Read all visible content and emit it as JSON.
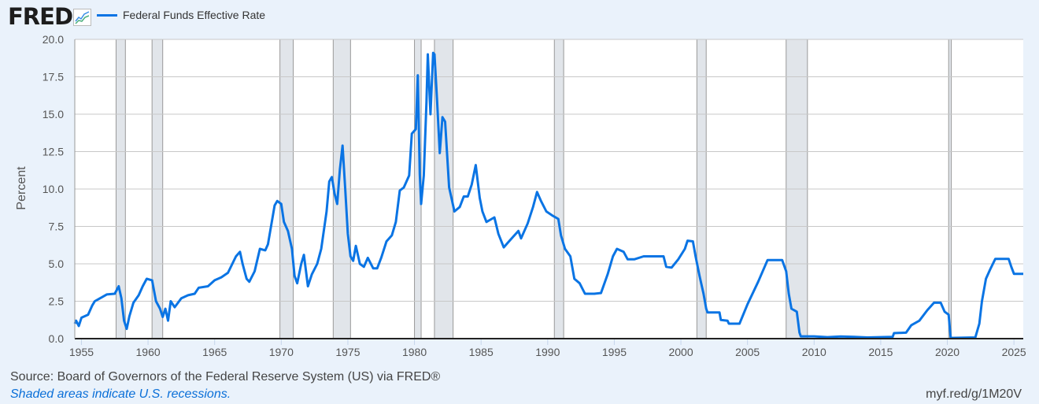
{
  "header": {
    "logo_text": "FRED",
    "logo_icon": "chart-line-icon"
  },
  "chart_data": {
    "type": "line",
    "title": "",
    "xlabel": "",
    "ylabel": "Percent",
    "xlim": [
      1954.5,
      2025.7
    ],
    "ylim": [
      0,
      20
    ],
    "grid": "horizontal",
    "legend_placement": "top-left",
    "x_ticks": [
      1955,
      1960,
      1965,
      1970,
      1975,
      1980,
      1985,
      1990,
      1995,
      2000,
      2005,
      2010,
      2015,
      2020,
      2025
    ],
    "y_ticks": [
      "0.0",
      "2.5",
      "5.0",
      "7.5",
      "10.0",
      "12.5",
      "15.0",
      "17.5",
      "20.0"
    ],
    "recessions": [
      [
        1957.6,
        1958.3
      ],
      [
        1960.3,
        1961.1
      ],
      [
        1969.9,
        1970.9
      ],
      [
        1973.9,
        1975.2
      ],
      [
        1980.0,
        1980.5
      ],
      [
        1981.5,
        1982.9
      ],
      [
        1990.5,
        1991.2
      ],
      [
        2001.2,
        2001.9
      ],
      [
        2007.9,
        2009.5
      ],
      [
        2020.1,
        2020.3
      ]
    ],
    "series": [
      {
        "name": "Federal Funds Effective Rate",
        "color": "#0a74e4",
        "points": [
          [
            1954.5,
            1.0
          ],
          [
            1954.6,
            1.2
          ],
          [
            1954.8,
            0.85
          ],
          [
            1955.0,
            1.4
          ],
          [
            1955.5,
            1.6
          ],
          [
            1955.8,
            2.2
          ],
          [
            1956.0,
            2.5
          ],
          [
            1956.5,
            2.75
          ],
          [
            1956.9,
            2.95
          ],
          [
            1957.5,
            3.0
          ],
          [
            1957.8,
            3.5
          ],
          [
            1958.0,
            2.7
          ],
          [
            1958.2,
            1.2
          ],
          [
            1958.4,
            0.65
          ],
          [
            1958.6,
            1.5
          ],
          [
            1958.9,
            2.4
          ],
          [
            1959.3,
            2.9
          ],
          [
            1959.6,
            3.5
          ],
          [
            1959.9,
            4.0
          ],
          [
            1960.3,
            3.9
          ],
          [
            1960.6,
            2.5
          ],
          [
            1960.9,
            2.0
          ],
          [
            1961.1,
            1.45
          ],
          [
            1961.3,
            2.0
          ],
          [
            1961.5,
            1.2
          ],
          [
            1961.7,
            2.5
          ],
          [
            1962.0,
            2.1
          ],
          [
            1962.5,
            2.7
          ],
          [
            1963.0,
            2.9
          ],
          [
            1963.5,
            3.0
          ],
          [
            1963.8,
            3.4
          ],
          [
            1964.5,
            3.5
          ],
          [
            1965.0,
            3.9
          ],
          [
            1965.5,
            4.1
          ],
          [
            1966.0,
            4.4
          ],
          [
            1966.6,
            5.5
          ],
          [
            1966.9,
            5.8
          ],
          [
            1967.1,
            5.0
          ],
          [
            1967.4,
            4.0
          ],
          [
            1967.6,
            3.8
          ],
          [
            1968.0,
            4.5
          ],
          [
            1968.4,
            6.0
          ],
          [
            1968.8,
            5.9
          ],
          [
            1969.0,
            6.3
          ],
          [
            1969.5,
            8.9
          ],
          [
            1969.7,
            9.2
          ],
          [
            1970.0,
            9.0
          ],
          [
            1970.2,
            7.8
          ],
          [
            1970.5,
            7.2
          ],
          [
            1970.8,
            6.0
          ],
          [
            1971.0,
            4.2
          ],
          [
            1971.2,
            3.7
          ],
          [
            1971.5,
            5.0
          ],
          [
            1971.7,
            5.6
          ],
          [
            1972.0,
            3.5
          ],
          [
            1972.3,
            4.3
          ],
          [
            1972.7,
            5.0
          ],
          [
            1973.0,
            6.0
          ],
          [
            1973.4,
            8.5
          ],
          [
            1973.6,
            10.5
          ],
          [
            1973.8,
            10.8
          ],
          [
            1974.0,
            9.7
          ],
          [
            1974.2,
            9.0
          ],
          [
            1974.4,
            11.3
          ],
          [
            1974.6,
            12.9
          ],
          [
            1974.8,
            10.0
          ],
          [
            1975.0,
            7.0
          ],
          [
            1975.2,
            5.5
          ],
          [
            1975.4,
            5.2
          ],
          [
            1975.6,
            6.2
          ],
          [
            1975.9,
            5.0
          ],
          [
            1976.2,
            4.8
          ],
          [
            1976.5,
            5.4
          ],
          [
            1976.9,
            4.7
          ],
          [
            1977.2,
            4.7
          ],
          [
            1977.5,
            5.4
          ],
          [
            1977.9,
            6.5
          ],
          [
            1978.3,
            6.9
          ],
          [
            1978.6,
            7.8
          ],
          [
            1978.9,
            9.9
          ],
          [
            1979.2,
            10.1
          ],
          [
            1979.6,
            10.9
          ],
          [
            1979.8,
            13.7
          ],
          [
            1979.9,
            13.8
          ],
          [
            1980.1,
            14.0
          ],
          [
            1980.25,
            17.6
          ],
          [
            1980.4,
            11.0
          ],
          [
            1980.5,
            9.0
          ],
          [
            1980.7,
            10.9
          ],
          [
            1980.9,
            15.8
          ],
          [
            1981.0,
            19.0
          ],
          [
            1981.2,
            15.0
          ],
          [
            1981.4,
            19.1
          ],
          [
            1981.5,
            19.0
          ],
          [
            1981.7,
            15.9
          ],
          [
            1981.9,
            12.4
          ],
          [
            1982.1,
            14.8
          ],
          [
            1982.3,
            14.5
          ],
          [
            1982.6,
            10.1
          ],
          [
            1982.8,
            9.3
          ],
          [
            1983.0,
            8.5
          ],
          [
            1983.4,
            8.8
          ],
          [
            1983.7,
            9.5
          ],
          [
            1984.0,
            9.5
          ],
          [
            1984.3,
            10.3
          ],
          [
            1984.6,
            11.6
          ],
          [
            1984.9,
            9.4
          ],
          [
            1985.1,
            8.5
          ],
          [
            1985.4,
            7.8
          ],
          [
            1985.8,
            8.0
          ],
          [
            1986.0,
            8.1
          ],
          [
            1986.3,
            7.0
          ],
          [
            1986.7,
            6.1
          ],
          [
            1987.0,
            6.4
          ],
          [
            1987.4,
            6.8
          ],
          [
            1987.8,
            7.2
          ],
          [
            1988.0,
            6.7
          ],
          [
            1988.5,
            7.7
          ],
          [
            1988.9,
            8.8
          ],
          [
            1989.2,
            9.8
          ],
          [
            1989.5,
            9.2
          ],
          [
            1989.9,
            8.5
          ],
          [
            1990.4,
            8.2
          ],
          [
            1990.8,
            8.0
          ],
          [
            1991.0,
            6.9
          ],
          [
            1991.3,
            6.0
          ],
          [
            1991.7,
            5.5
          ],
          [
            1992.0,
            4.0
          ],
          [
            1992.4,
            3.7
          ],
          [
            1992.8,
            3.0
          ],
          [
            1993.5,
            3.0
          ],
          [
            1994.0,
            3.05
          ],
          [
            1994.5,
            4.3
          ],
          [
            1994.9,
            5.5
          ],
          [
            1995.2,
            6.0
          ],
          [
            1995.7,
            5.8
          ],
          [
            1996.0,
            5.3
          ],
          [
            1996.5,
            5.3
          ],
          [
            1997.2,
            5.5
          ],
          [
            1998.0,
            5.5
          ],
          [
            1998.7,
            5.5
          ],
          [
            1998.9,
            4.8
          ],
          [
            1999.3,
            4.75
          ],
          [
            1999.8,
            5.3
          ],
          [
            2000.3,
            6.0
          ],
          [
            2000.5,
            6.55
          ],
          [
            2000.9,
            6.5
          ],
          [
            2001.1,
            5.5
          ],
          [
            2001.4,
            4.2
          ],
          [
            2001.7,
            3.0
          ],
          [
            2001.9,
            2.0
          ],
          [
            2002.0,
            1.75
          ],
          [
            2002.9,
            1.75
          ],
          [
            2003.0,
            1.25
          ],
          [
            2003.5,
            1.2
          ],
          [
            2003.6,
            1.0
          ],
          [
            2004.4,
            1.0
          ],
          [
            2005.0,
            2.3
          ],
          [
            2005.8,
            3.8
          ],
          [
            2006.5,
            5.25
          ],
          [
            2007.6,
            5.25
          ],
          [
            2007.9,
            4.5
          ],
          [
            2008.1,
            3.0
          ],
          [
            2008.3,
            2.0
          ],
          [
            2008.7,
            1.8
          ],
          [
            2008.9,
            0.4
          ],
          [
            2009.0,
            0.15
          ],
          [
            2010.0,
            0.15
          ],
          [
            2011.0,
            0.1
          ],
          [
            2012.0,
            0.14
          ],
          [
            2013.0,
            0.12
          ],
          [
            2014.0,
            0.08
          ],
          [
            2015.9,
            0.12
          ],
          [
            2016.0,
            0.37
          ],
          [
            2016.9,
            0.4
          ],
          [
            2017.3,
            0.9
          ],
          [
            2017.9,
            1.2
          ],
          [
            2018.5,
            1.9
          ],
          [
            2019.0,
            2.4
          ],
          [
            2019.5,
            2.4
          ],
          [
            2019.8,
            1.8
          ],
          [
            2020.1,
            1.6
          ],
          [
            2020.25,
            0.05
          ],
          [
            2022.1,
            0.08
          ],
          [
            2022.4,
            1.0
          ],
          [
            2022.6,
            2.5
          ],
          [
            2022.9,
            4.0
          ],
          [
            2023.2,
            4.6
          ],
          [
            2023.6,
            5.33
          ],
          [
            2024.6,
            5.33
          ],
          [
            2024.8,
            4.8
          ],
          [
            2025.0,
            4.33
          ],
          [
            2025.7,
            4.33
          ]
        ]
      }
    ]
  },
  "footer": {
    "source": "Source: Board of Governors of the Federal Reserve System (US) via FRED®",
    "note": "Shaded areas indicate U.S. recessions.",
    "url": "myf.red/g/1M20V"
  }
}
